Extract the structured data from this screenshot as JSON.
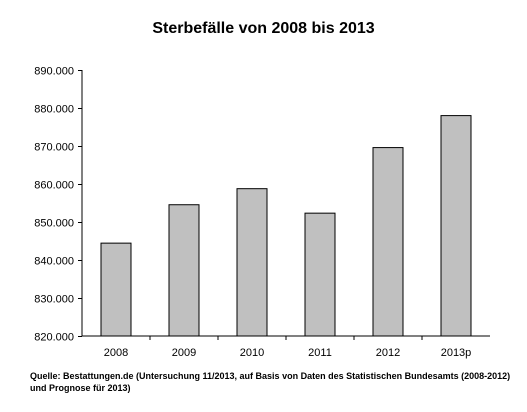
{
  "chart_data": {
    "type": "bar",
    "title": "Sterbefälle von 2008 bis 2013",
    "categories": [
      "2008",
      "2009",
      "2010",
      "2011",
      "2012",
      "2013p"
    ],
    "values": [
      844439,
      854544,
      858768,
      852328,
      869582,
      878000
    ],
    "ylim": [
      820000,
      890000
    ],
    "yticks": [
      820000,
      830000,
      840000,
      850000,
      860000,
      870000,
      880000,
      890000
    ],
    "ytick_labels": [
      "820.000",
      "830.000",
      "840.000",
      "850.000",
      "860.000",
      "870.000",
      "880.000",
      "890.000"
    ],
    "xlabel": "",
    "ylabel": "",
    "grid": false,
    "legend": "none",
    "bar_color": "#c0c0c0",
    "bar_edge_color": "#000000"
  },
  "source_note": "Quelle: Bestattungen.de (Untersuchung 11/2013, auf Basis von Daten des Statistischen Bundesamts (2008-2012) und Prognose für 2013)"
}
